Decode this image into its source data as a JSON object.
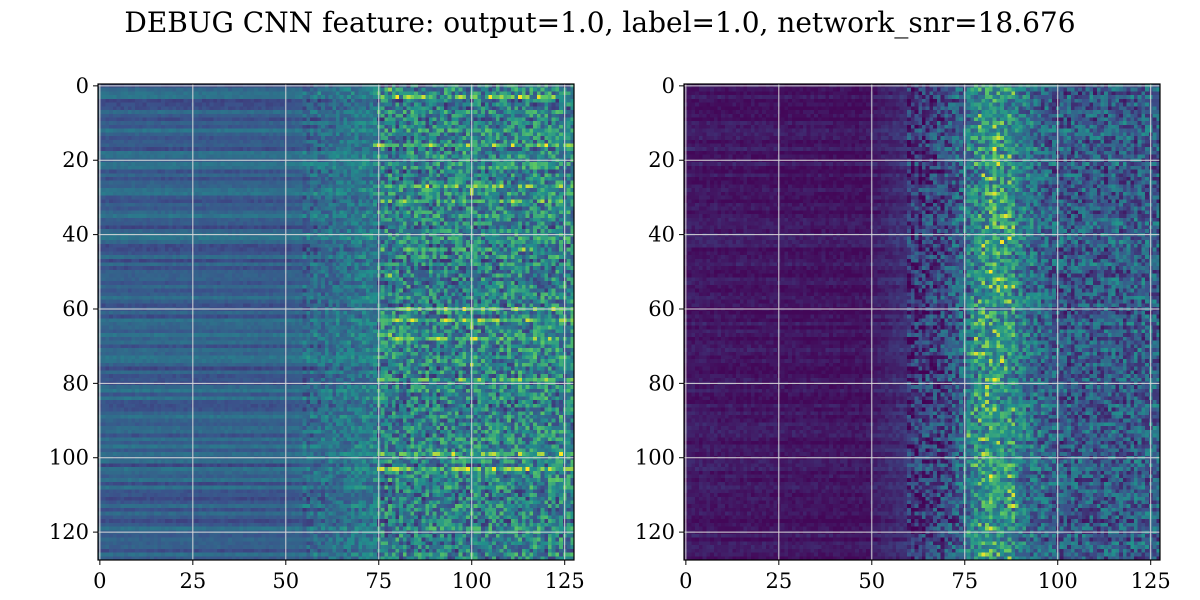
{
  "title": "DEBUG CNN feature: output=1.0, label=1.0, network_snr=18.676",
  "colormap": [
    "#440154",
    "#3b528b",
    "#21918c",
    "#5ec962",
    "#fde725"
  ],
  "grid_color": "#d9d9d9",
  "chart_data": [
    {
      "type": "heatmap",
      "rows": 128,
      "cols": 128,
      "xlim": [
        0,
        127
      ],
      "ylim": [
        127,
        0
      ],
      "xticks": [
        0,
        25,
        50,
        75,
        100,
        125
      ],
      "yticks": [
        0,
        20,
        40,
        60,
        80,
        100,
        120
      ],
      "xtick_labels": [
        "0",
        "25",
        "50",
        "75",
        "100",
        "125"
      ],
      "ytick_labels": [
        "0",
        "20",
        "40",
        "60",
        "80",
        "100",
        "120"
      ],
      "grid": true,
      "hot_rows": [
        3,
        16,
        27,
        31,
        44,
        60,
        63,
        68,
        79,
        99,
        103
      ],
      "hot_cols": [
        78,
        100
      ],
      "hot_points": [
        [
          3,
          83
        ],
        [
          3,
          97
        ],
        [
          16,
          75
        ],
        [
          63,
          80
        ],
        [
          63,
          84
        ],
        [
          63,
          93
        ],
        [
          68,
          80
        ],
        [
          68,
          91
        ],
        [
          103,
          80
        ],
        [
          103,
          96
        ]
      ],
      "baseline_profile": [
        [
          0,
          0.3
        ],
        [
          50,
          0.3
        ],
        [
          75,
          0.42
        ],
        [
          127,
          0.45
        ]
      ]
    },
    {
      "type": "heatmap",
      "rows": 128,
      "cols": 128,
      "xlim": [
        0,
        127
      ],
      "ylim": [
        127,
        0
      ],
      "xticks": [
        0,
        25,
        50,
        75,
        100,
        125
      ],
      "yticks": [
        0,
        20,
        40,
        60,
        80,
        100,
        120
      ],
      "xtick_labels": [
        "0",
        "25",
        "50",
        "75",
        "100",
        "125"
      ],
      "ytick_labels": [
        "0",
        "20",
        "40",
        "60",
        "80",
        "100",
        "120"
      ],
      "grid": true,
      "hot_band_center_col": 82,
      "hot_points": [
        [
          14,
          84
        ],
        [
          25,
          82
        ],
        [
          29,
          83
        ],
        [
          35,
          86
        ],
        [
          38,
          85
        ],
        [
          52,
          84
        ],
        [
          72,
          78
        ],
        [
          95,
          80
        ],
        [
          113,
          88
        ],
        [
          119,
          82
        ],
        [
          126,
          80
        ]
      ],
      "baseline_profile": [
        [
          0,
          0.1
        ],
        [
          50,
          0.08
        ],
        [
          70,
          0.22
        ],
        [
          82,
          0.5
        ],
        [
          100,
          0.28
        ],
        [
          127,
          0.3
        ]
      ]
    }
  ]
}
